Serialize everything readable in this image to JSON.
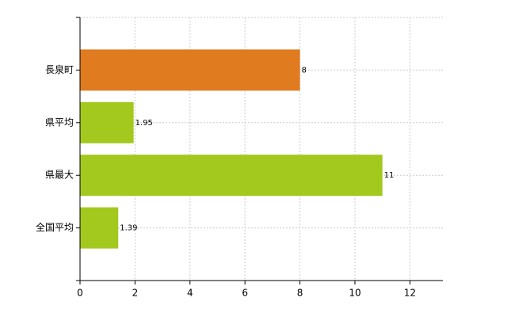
{
  "chart_data": {
    "type": "barh",
    "categories": [
      "長泉町",
      "県平均",
      "県最大",
      "全国平均"
    ],
    "values": [
      8,
      1.95,
      11,
      1.39
    ],
    "colors": [
      "#e07b20",
      "#a3c81e",
      "#a3c81e",
      "#a3c81e"
    ],
    "xlim": [
      0,
      13.2
    ],
    "xticks": [
      0,
      2,
      4,
      6,
      8,
      10,
      12
    ],
    "grid": true
  }
}
